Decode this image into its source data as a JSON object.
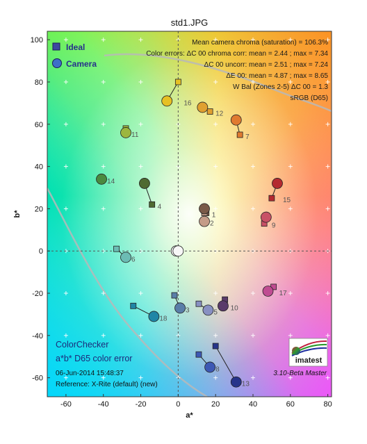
{
  "chart_data": {
    "type": "scatter",
    "title": "std1.JPG",
    "xlabel": "a*",
    "ylabel": "b*",
    "xlim": [
      -70,
      82
    ],
    "ylim": [
      -69,
      104
    ],
    "x_ticks": [
      -60,
      -40,
      -20,
      0,
      20,
      40,
      60,
      80
    ],
    "y_ticks": [
      -60,
      -40,
      -20,
      0,
      20,
      40,
      60,
      80,
      100
    ],
    "grid": false,
    "legend": {
      "placement": "top-left",
      "entries": [
        {
          "name": "Ideal",
          "marker": "square",
          "color": "#3d48a0"
        },
        {
          "name": "Camera",
          "marker": "circle",
          "color": "#3d6fc8"
        }
      ]
    },
    "stats": [
      "Mean camera chroma (saturation) = 106.3%",
      "Color errors: ΔC 00 chroma corr:  mean = 2.44 ;  max = 7.34",
      "ΔC 00 uncorr:  mean = 2.51 ;  max = 7.24",
      "ΔE 00:  mean = 4.87 ;  max = 8.65",
      "W Bal (Zones 2-5) ΔC 00 = 1.3",
      "sRGB (D65)"
    ],
    "footer": {
      "title1": "ColorChecker",
      "title2": "a*b* D65 color error",
      "date": "06-Jun-2014 15:48:37",
      "reference": "Reference: X-Rite (default) (new)",
      "version": "3.10-Beta  Master",
      "logo_text": "imatest"
    },
    "patches": [
      {
        "id": "1",
        "ideal": [
          15,
          18
        ],
        "camera": [
          14,
          20
        ],
        "color": "#7a5a48"
      },
      {
        "id": "2",
        "ideal": [
          14,
          18
        ],
        "camera": [
          14,
          14
        ],
        "color": "#c49c88"
      },
      {
        "id": "3",
        "ideal": [
          -2,
          -21
        ],
        "camera": [
          1,
          -27
        ],
        "color": "#5a7ea8"
      },
      {
        "id": "4",
        "ideal": [
          -14,
          22
        ],
        "camera": [
          -18,
          32
        ],
        "color": "#4f6a32"
      },
      {
        "id": "5",
        "ideal": [
          11,
          -25
        ],
        "camera": [
          16,
          -28
        ],
        "color": "#8890c2"
      },
      {
        "id": "6",
        "ideal": [
          -33,
          1
        ],
        "camera": [
          -28,
          -3
        ],
        "color": "#6cbcb4"
      },
      {
        "id": "7",
        "ideal": [
          33,
          55
        ],
        "camera": [
          31,
          62
        ],
        "color": "#e07a30"
      },
      {
        "id": "8",
        "ideal": [
          11,
          -49
        ],
        "camera": [
          17,
          -55
        ],
        "color": "#3d58b4"
      },
      {
        "id": "9",
        "ideal": [
          46,
          13
        ],
        "camera": [
          47,
          16
        ],
        "color": "#c85066"
      },
      {
        "id": "10",
        "ideal": [
          25,
          -23
        ],
        "camera": [
          24,
          -26
        ],
        "color": "#5a3a6a"
      },
      {
        "id": "11",
        "ideal": [
          -28,
          58
        ],
        "camera": [
          -28,
          56
        ],
        "color": "#9cb63e"
      },
      {
        "id": "12",
        "ideal": [
          17,
          66
        ],
        "camera": [
          13,
          68
        ],
        "color": "#e0a030"
      },
      {
        "id": "13",
        "ideal": [
          20,
          -45
        ],
        "camera": [
          31,
          -62
        ],
        "color": "#27348a"
      },
      {
        "id": "14",
        "ideal": [
          -41,
          34
        ],
        "camera": [
          -41,
          34
        ],
        "color": "#4a8a40"
      },
      {
        "id": "15",
        "ideal": [
          50,
          25
        ],
        "camera": [
          53,
          32
        ],
        "color": "#b42a30"
      },
      {
        "id": "16",
        "ideal": [
          0,
          80
        ],
        "camera": [
          -6,
          71
        ],
        "color": "#e6c024"
      },
      {
        "id": "17",
        "ideal": [
          51,
          -17
        ],
        "camera": [
          48,
          -19
        ],
        "color": "#c04c92"
      },
      {
        "id": "18",
        "ideal": [
          -24,
          -26
        ],
        "camera": [
          -13,
          -31
        ],
        "color": "#1f86a6"
      },
      {
        "id": "19",
        "ideal": [
          0,
          0
        ],
        "camera": [
          -1,
          0
        ],
        "color": "#ededed"
      },
      {
        "id": "20",
        "ideal": [
          0,
          0
        ],
        "camera": [
          0,
          0
        ],
        "color": "#f7f7f7"
      }
    ],
    "reference_line": {
      "x": 0,
      "y": 0,
      "style": "dashed"
    }
  }
}
